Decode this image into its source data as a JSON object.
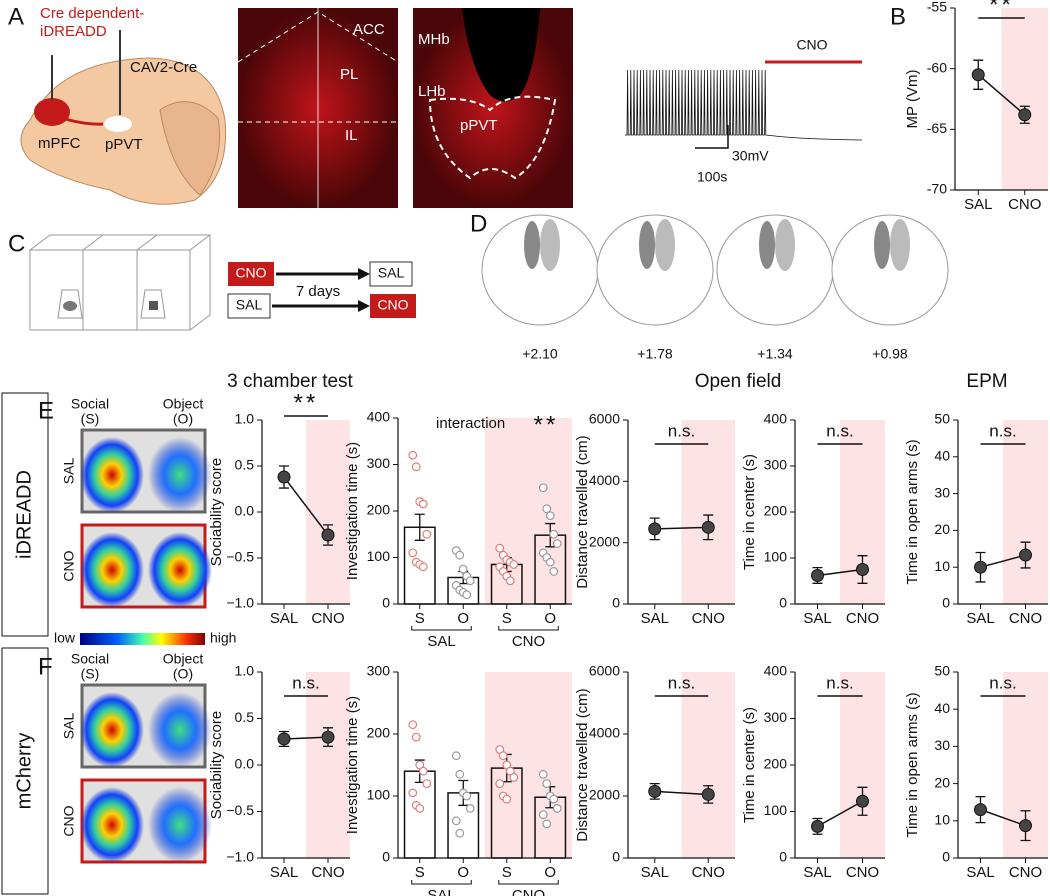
{
  "chart_data": [
    {
      "type": "line",
      "ylabel": "MP (Vm)",
      "categories": [
        "SAL",
        "CNO"
      ],
      "values": [
        -60.5,
        -63.8
      ],
      "errors": [
        1.2,
        0.7
      ],
      "ylim": [
        -70,
        -55
      ],
      "yticks": [
        -70,
        -65,
        -60,
        -55
      ],
      "annotation": "**",
      "color": "#444444"
    },
    {
      "type": "line",
      "ylabel": "Sociability score",
      "categories": [
        "SAL",
        "CNO"
      ],
      "values": [
        0.38,
        -0.25
      ],
      "errors": [
        0.12,
        0.11
      ],
      "ylim": [
        -1,
        1
      ],
      "yticks": [
        {
          "value": -1,
          "label": "−1.0"
        },
        {
          "value": -0.5,
          "label": "−0.5"
        },
        {
          "value": 0,
          "label": "0.0"
        },
        {
          "value": 0.5,
          "label": "0.5"
        },
        {
          "value": 1,
          "label": "1.0"
        }
      ],
      "annotation": "**",
      "color": "#444444"
    },
    {
      "type": "bar",
      "ylabel": "Investigation time (s)",
      "categories": [
        "S",
        "O",
        "S",
        "O"
      ],
      "groups": [
        "SAL",
        "CNO"
      ],
      "values": [
        165,
        57,
        85,
        148
      ],
      "errors": [
        28,
        13,
        15,
        25
      ],
      "points": [
        [
          320,
          295,
          220,
          215,
          150,
          110,
          90,
          85,
          80
        ],
        [
          115,
          105,
          75,
          60,
          50,
          40,
          30,
          25,
          20
        ],
        [
          120,
          105,
          95,
          90,
          85,
          80,
          70,
          60,
          50
        ],
        [
          250,
          205,
          190,
          150,
          130,
          110,
          100,
          90,
          70
        ]
      ],
      "point_colors": [
        "#e07b7b",
        "#999999",
        "#e07b7b",
        "#999999"
      ],
      "ylim": [
        0,
        400
      ],
      "yticks": [
        0,
        100,
        200,
        300,
        400
      ],
      "annotation_label": "interaction",
      "annotation": "**"
    },
    {
      "type": "line",
      "ylabel": "Distance travelled (cm)",
      "categories": [
        "SAL",
        "CNO"
      ],
      "values": [
        2450,
        2500
      ],
      "errors": [
        350,
        400
      ],
      "ylim": [
        0,
        6000
      ],
      "yticks": [
        0,
        2000,
        4000,
        6000
      ],
      "annotation": "n.s.",
      "color": "#444444"
    },
    {
      "type": "line",
      "ylabel": "Time in center (s)",
      "categories": [
        "SAL",
        "CNO"
      ],
      "values": [
        62,
        75
      ],
      "errors": [
        17,
        30
      ],
      "ylim": [
        0,
        400
      ],
      "yticks": [
        0,
        100,
        200,
        300,
        400
      ],
      "annotation": "n.s.",
      "color": "#444444"
    },
    {
      "type": "line",
      "ylabel": "Time in open arms (s)",
      "categories": [
        "SAL",
        "CNO"
      ],
      "values": [
        10,
        13.3
      ],
      "errors": [
        4,
        3.5
      ],
      "ylim": [
        0,
        50
      ],
      "yticks": [
        0,
        10,
        20,
        30,
        40,
        50
      ],
      "annotation": "n.s.",
      "color": "#444444"
    },
    {
      "type": "line",
      "ylabel": "Sociability score",
      "categories": [
        "SAL",
        "CNO"
      ],
      "values": [
        0.28,
        0.3
      ],
      "errors": [
        0.08,
        0.1
      ],
      "ylim": [
        -1,
        1
      ],
      "yticks": [
        {
          "value": -1,
          "label": "−1.0"
        },
        {
          "value": -0.5,
          "label": "−0.5"
        },
        {
          "value": 0,
          "label": "0.0"
        },
        {
          "value": 0.5,
          "label": "0.5"
        },
        {
          "value": 1,
          "label": "1.0"
        }
      ],
      "annotation": "n.s.",
      "color": "#444444"
    },
    {
      "type": "bar",
      "ylabel": "Investigation time (s)",
      "categories": [
        "S",
        "O",
        "S",
        "O"
      ],
      "groups": [
        "SAL",
        "CNO"
      ],
      "values": [
        140,
        105,
        145,
        98
      ],
      "errors": [
        18,
        20,
        22,
        17
      ],
      "points": [
        [
          215,
          195,
          150,
          140,
          120,
          105,
          85,
          80
        ],
        [
          165,
          135,
          105,
          100,
          80,
          60,
          40
        ],
        [
          175,
          165,
          150,
          140,
          130,
          120,
          100,
          95
        ],
        [
          135,
          120,
          100,
          95,
          80,
          70,
          55
        ]
      ],
      "point_colors": [
        "#e07b7b",
        "#999999",
        "#e07b7b",
        "#999999"
      ],
      "ylim": [
        0,
        300
      ],
      "yticks": [
        0,
        100,
        200,
        300
      ]
    },
    {
      "type": "line",
      "ylabel": "Distance travelled (cm)",
      "categories": [
        "SAL",
        "CNO"
      ],
      "values": [
        2150,
        2050
      ],
      "errors": [
        250,
        280
      ],
      "ylim": [
        0,
        6000
      ],
      "yticks": [
        0,
        2000,
        4000,
        6000
      ],
      "annotation": "n.s.",
      "color": "#444444"
    },
    {
      "type": "line",
      "ylabel": "Time in center (s)",
      "categories": [
        "SAL",
        "CNO"
      ],
      "values": [
        68,
        122
      ],
      "errors": [
        17,
        30
      ],
      "ylim": [
        0,
        400
      ],
      "yticks": [
        0,
        100,
        200,
        300,
        400
      ],
      "annotation": "n.s.",
      "color": "#444444"
    },
    {
      "type": "line",
      "ylabel": "Time in open arms (s)",
      "categories": [
        "SAL",
        "CNO"
      ],
      "values": [
        13,
        8.7
      ],
      "errors": [
        3.5,
        4
      ],
      "ylim": [
        0,
        50
      ],
      "yticks": [
        0,
        10,
        20,
        30,
        40,
        50
      ],
      "annotation": "n.s.",
      "color": "#444444"
    }
  ],
  "panel_labels": [
    "A",
    "B",
    "C",
    "D",
    "E",
    "F"
  ],
  "panel_a": {
    "virus_1": [
      "Cre dependent-",
      "iDREADD"
    ],
    "virus_2": "CAV2-Cre",
    "region_1": "mPFC",
    "region_2": "pPVT",
    "image_1_labels": [
      "ACC",
      "PL",
      "IL"
    ],
    "image_2_labels": [
      "MHb",
      "LHb",
      "pPVT"
    ]
  },
  "panel_b": {
    "stimulus": "CNO",
    "scale_v": "30mV",
    "scale_t": "100s"
  },
  "panel_c": {
    "top_start": "CNO",
    "top_end": "SAL",
    "interval": "7 days",
    "bottom_start": "SAL",
    "bottom_end": "CNO"
  },
  "panel_d": {
    "coordinates": [
      "+2.10",
      "+1.78",
      "+1.34",
      "+0.98"
    ]
  },
  "headers": [
    "3 chamber test",
    "Open field",
    "EPM"
  ],
  "rows": [
    {
      "label": "iDREADD",
      "social": [
        "Social",
        "(S)"
      ],
      "object": [
        "Object",
        "(O)"
      ],
      "conditions": [
        "SAL",
        "CNO"
      ]
    },
    {
      "label": "mCherry",
      "social": [
        "Social",
        "(S)"
      ],
      "object": [
        "Object",
        "(O)"
      ],
      "conditions": [
        "SAL",
        "CNO"
      ]
    }
  ],
  "colorbar": [
    "low",
    "high"
  ]
}
